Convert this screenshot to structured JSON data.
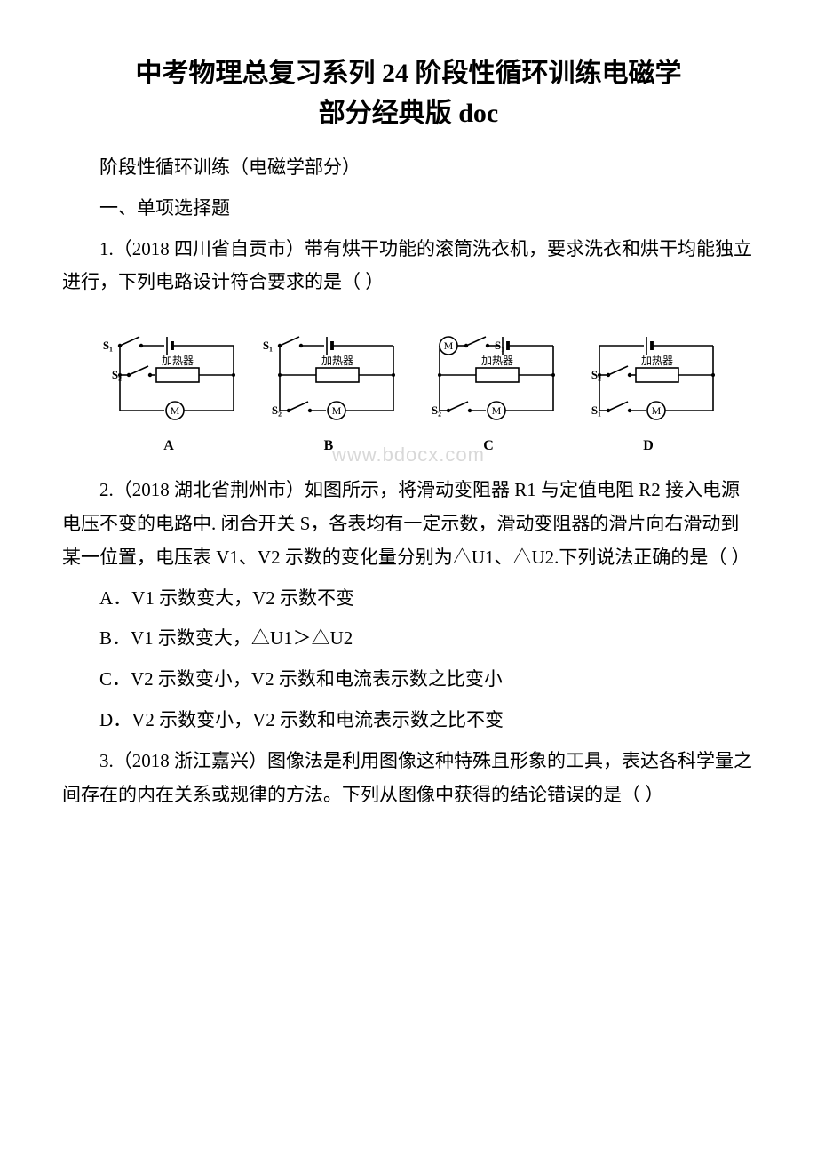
{
  "title": {
    "line1": "中考物理总复习系列 24 阶段性循环训练电磁学",
    "line2": "部分经典版 ",
    "suffix": "doc"
  },
  "subtitleA": "阶段性循环训练（电磁学部分）",
  "sectionHeading": "一、单项选择题",
  "q1": "1.（2018 四川省自贡市）带有烘干功能的滚筒洗衣机，要求洗衣和烘干均能独立进行，下列电路设计符合要求的是（ ）",
  "q2": "2.（2018 湖北省荆州市）如图所示，将滑动变阻器 R1 与定值电阻 R2 接入电源电压不变的电路中. 闭合开关 S，各表均有一定示数，滑动变阻器的滑片向右滑动到某一位置，电压表 V1、V2 示数的变化量分别为△U1、△U2.下列说法正确的是（ ）",
  "q2_options": {
    "A": "A．V1 示数变大，V2 示数不变",
    "B": "B．V1 示数变大，△U1＞△U2",
    "C": "C．V2 示数变小，V2 示数和电流表示数之比变小",
    "D": "D．V2 示数变小，V2 示数和电流表示数之比不变"
  },
  "q3": "3.（2018 浙江嘉兴）图像法是利用图像这种特殊且形象的工具，表达各科学量之间存在的内在关系或规律的方法。下列从图像中获得的结论错误的是（ ）",
  "watermark": "www.bdocx.com",
  "circuit": {
    "stroke": "#000000",
    "strokeWidth": 1.6,
    "bgColor": "#ffffff",
    "heater_label": "加热器",
    "heater_fontsize": 12,
    "s1_label": "S₁",
    "s2_label": "S₂",
    "label_fontfamily": "Times New Roman, serif",
    "label_fontsize": 13,
    "caption_fontsize": 16,
    "panels": [
      "A",
      "B",
      "C",
      "D"
    ]
  }
}
